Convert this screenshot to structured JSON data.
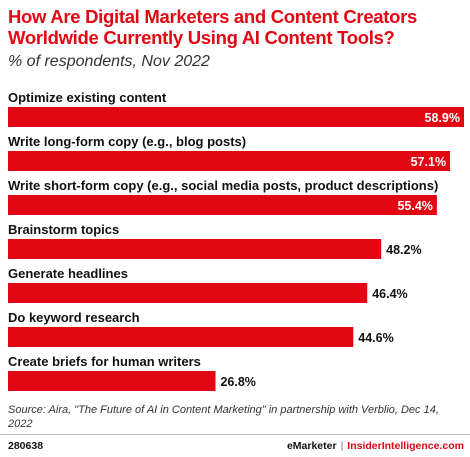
{
  "header": {
    "title": "How Are Digital Marketers and Content Creators Worldwide Currently Using AI Content Tools?",
    "subtitle": "% of respondents, Nov 2022"
  },
  "colors": {
    "bar": "#e30613",
    "title": "#e30613",
    "label_inside": "#ffffff",
    "label_outside": "#111111"
  },
  "chart_data": {
    "type": "bar",
    "orientation": "horizontal",
    "categories": [
      "Optimize existing content",
      "Write long-form copy (e.g., blog posts)",
      "Write short-form copy (e.g., social media posts, product descriptions)",
      "Brainstorm topics",
      "Generate headlines",
      "Do keyword research",
      "Create briefs for human writers"
    ],
    "values": [
      58.9,
      57.1,
      55.4,
      48.2,
      46.4,
      44.6,
      26.8
    ],
    "value_labels": [
      "58.9%",
      "57.1%",
      "55.4%",
      "48.2%",
      "46.4%",
      "44.6%",
      "26.8%"
    ],
    "xlim": [
      0,
      58.9
    ],
    "grid": false,
    "legend": "none"
  },
  "footer": {
    "source": "Source: Aira, \"The Future of AI in Content Marketing\" in partnership with Verblio, Dec 14, 2022",
    "chart_id": "280638",
    "brand_1": "eMarketer",
    "separator": "|",
    "brand_2": "InsiderIntelligence.com"
  }
}
